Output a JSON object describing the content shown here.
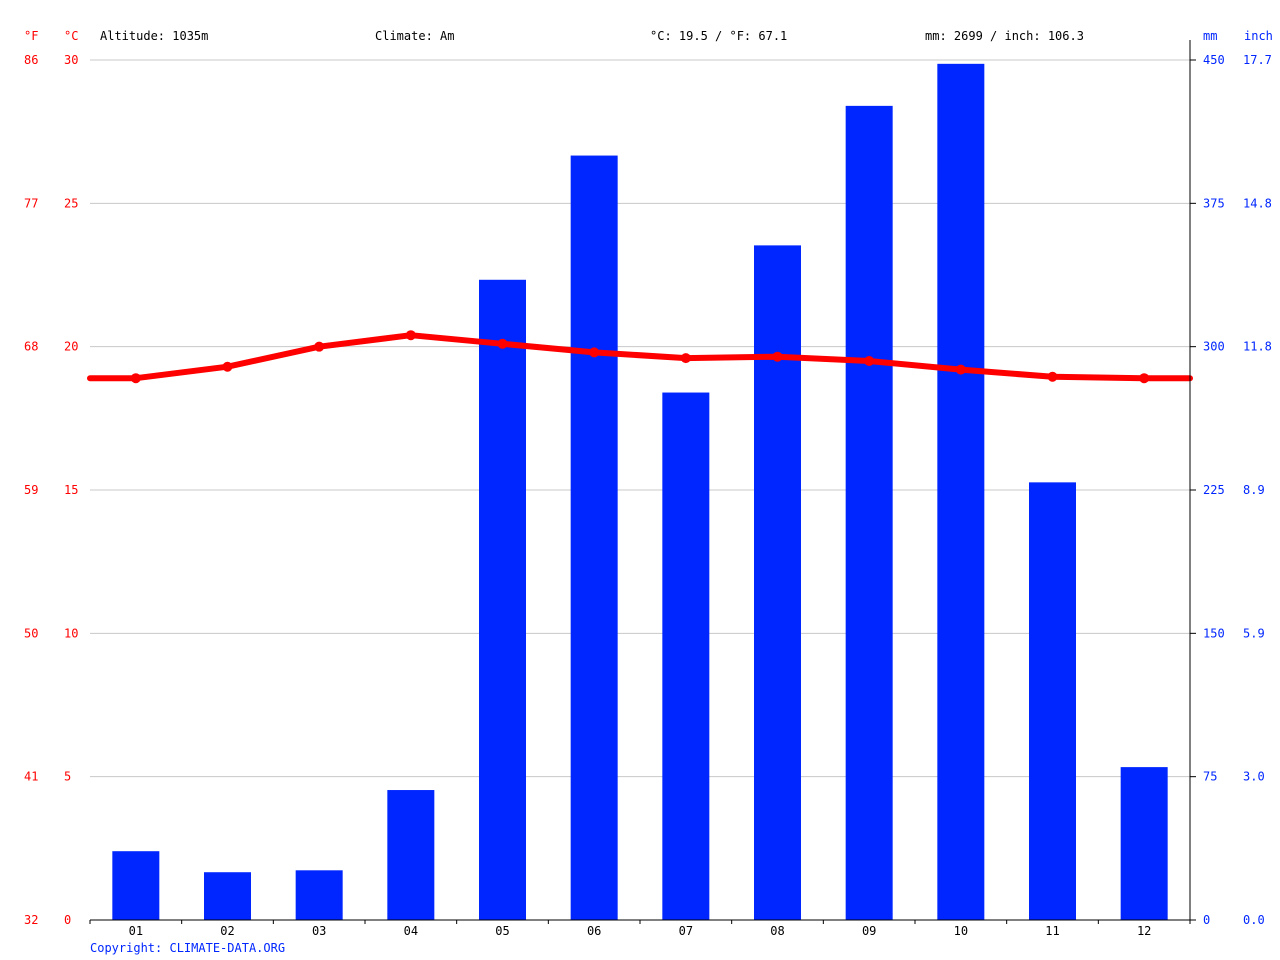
{
  "header": {
    "unit_f": "°F",
    "unit_c": "°C",
    "altitude": "Altitude: 1035m",
    "climate": "Climate: Am",
    "temp_avg": "°C: 19.5 / °F: 67.1",
    "precip_total": "mm: 2699 / inch: 106.3",
    "unit_mm": "mm",
    "unit_inch": "inch"
  },
  "footer": {
    "copyright": "Copyright: CLIMATE-DATA.ORG"
  },
  "colors": {
    "temperature": "#ff0000",
    "precipitation": "#0026ff",
    "grid": "#c8c8c8",
    "axis": "#000000"
  },
  "chart_data": {
    "type": "bar",
    "categories": [
      "01",
      "02",
      "03",
      "04",
      "05",
      "06",
      "07",
      "08",
      "09",
      "10",
      "11",
      "12"
    ],
    "series": [
      {
        "type": "bar",
        "axis": "right",
        "unit": "mm",
        "values": [
          36,
          25,
          26,
          68,
          335,
          400,
          276,
          353,
          426,
          448,
          229,
          80
        ]
      },
      {
        "type": "line",
        "axis": "left",
        "unit": "°C",
        "values": [
          18.9,
          19.3,
          20.0,
          20.4,
          20.1,
          19.8,
          19.6,
          19.65,
          19.5,
          19.2,
          18.95,
          18.9
        ]
      }
    ],
    "left_axis": {
      "ylim": [
        0,
        30
      ],
      "celsius_ticks": [
        "0",
        "5",
        "10",
        "15",
        "20",
        "25",
        "30"
      ],
      "fahrenheit_ticks": [
        "32",
        "41",
        "50",
        "59",
        "68",
        "77",
        "86"
      ]
    },
    "right_axis": {
      "ylim": [
        0,
        450
      ],
      "mm_ticks": [
        "0",
        "75",
        "150",
        "225",
        "300",
        "375",
        "450"
      ],
      "inch_ticks": [
        "0.0",
        "3.0",
        "5.9",
        "8.9",
        "11.8",
        "14.8",
        "17.7"
      ]
    },
    "grid": true
  }
}
